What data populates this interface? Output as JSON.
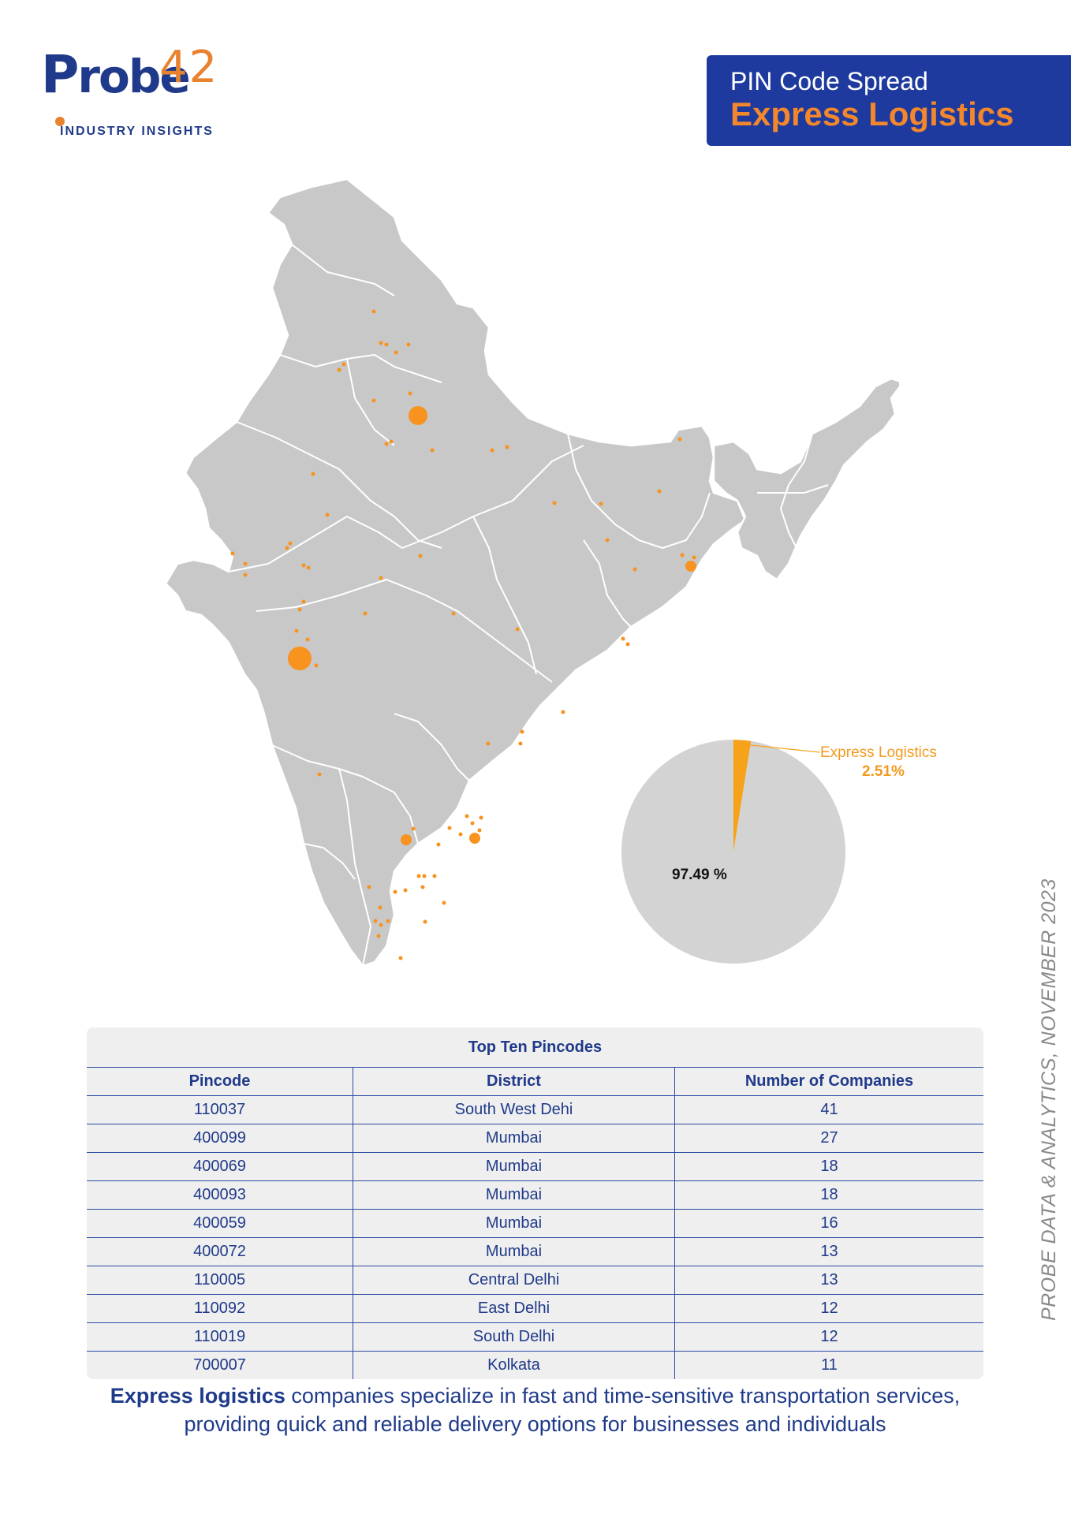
{
  "brand": {
    "logo_word": "robe",
    "logo_letter": "P",
    "logo_number": "42",
    "tagline": "INDUSTRY INSIGHTS"
  },
  "header": {
    "subtitle": "PIN Code Spread",
    "title": "Express Logistics"
  },
  "chart_data": {
    "type": "pie",
    "slices": [
      {
        "label": "Express Logistics",
        "value": 2.51,
        "display": "2.51%",
        "color": "#f7a21b"
      },
      {
        "label": "",
        "value": 97.49,
        "display": "97.49 %",
        "color": "#d3d3d3"
      }
    ]
  },
  "side_text": "PROBE DATA & ANALYTICS, NOVEMBER 2023",
  "table": {
    "title": "Top Ten Pincodes",
    "headers": [
      "Pincode",
      "District",
      "Number of Companies"
    ],
    "rows": [
      [
        "110037",
        "South West Dehi",
        "41"
      ],
      [
        "400099",
        "Mumbai",
        "27"
      ],
      [
        "400069",
        "Mumbai",
        "18"
      ],
      [
        "400093",
        "Mumbai",
        "18"
      ],
      [
        "400059",
        "Mumbai",
        "16"
      ],
      [
        "400072",
        "Mumbai",
        "13"
      ],
      [
        "110005",
        "Central Delhi",
        "13"
      ],
      [
        "110092",
        "East Delhi",
        "12"
      ],
      [
        "110019",
        "South Delhi",
        "12"
      ],
      [
        "700007",
        "Kolkata",
        "11"
      ]
    ]
  },
  "footer": {
    "bold": "Express logistics",
    "text": " companies specialize in fast and time-sensitive transportation services, providing quick and reliable delivery options for businesses and individuals"
  },
  "colors": {
    "brand_blue": "#1f3a9e",
    "brand_orange": "#f2872c",
    "dot_orange": "#f7931e",
    "map_gray": "#c8c8c8"
  }
}
